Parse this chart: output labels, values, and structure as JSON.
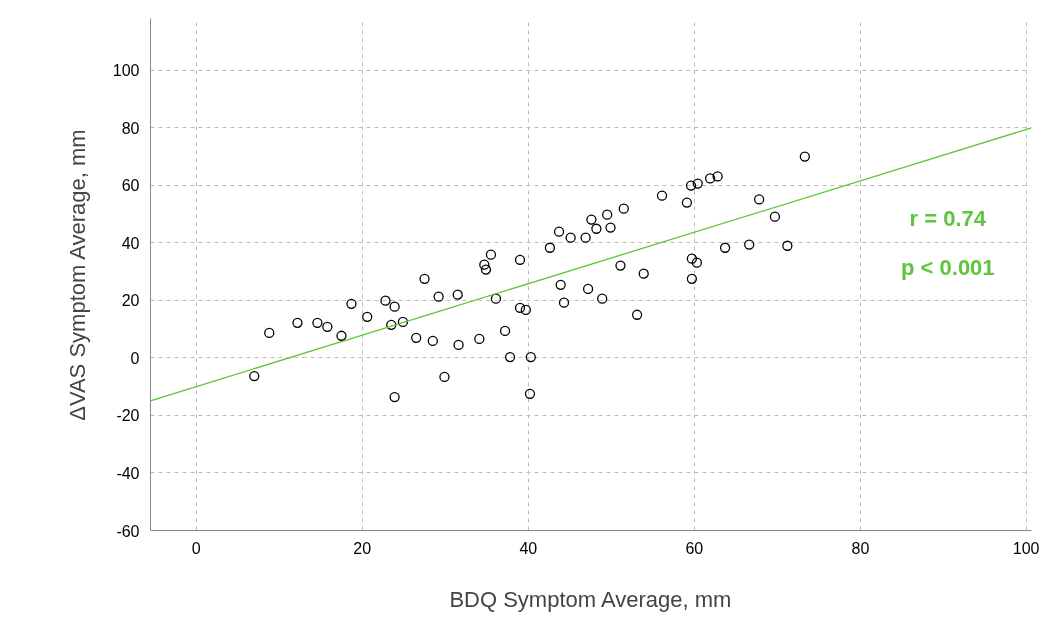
{
  "chart_data": {
    "type": "scatter",
    "xlabel": "BDQ Symptom Average, mm",
    "ylabel": "ΔVAS Symptom Average, mm",
    "xlim": [
      -5.5,
      100.6
    ],
    "ylim": [
      -60,
      118
    ],
    "xticks": [
      0,
      20,
      40,
      60,
      80,
      100
    ],
    "yticks": [
      -60,
      -40,
      -20,
      0,
      20,
      40,
      60,
      80,
      100
    ],
    "grid": true,
    "annotations": [
      "r = 0.74",
      "p < 0.001"
    ],
    "series": [
      {
        "marker": "circle",
        "color": "#000000",
        "x": [
          7.0,
          8.8,
          12.2,
          14.6,
          15.8,
          17.5,
          18.7,
          20.6,
          22.8,
          23.5,
          23.9,
          23.9,
          24.9,
          26.5,
          27.5,
          28.5,
          29.2,
          29.9,
          31.5,
          31.6,
          34.1,
          34.7,
          34.9,
          35.5,
          36.1,
          37.2,
          37.8,
          39.0,
          39.0,
          39.7,
          40.2,
          40.3,
          42.6,
          43.7,
          43.9,
          44.3,
          45.1,
          46.9,
          47.2,
          47.6,
          48.2,
          48.9,
          49.5,
          49.9,
          51.1,
          51.5,
          53.1,
          53.9,
          56.1,
          59.1,
          59.6,
          59.7,
          59.7,
          60.3,
          60.4,
          61.9,
          62.8,
          63.7,
          66.6,
          67.8,
          69.7,
          71.2,
          73.3
        ],
        "values": [
          -6.3,
          8.7,
          12.2,
          12.2,
          10.8,
          7.7,
          18.8,
          14.3,
          19.9,
          11.5,
          17.8,
          -13.6,
          12.5,
          7.0,
          27.5,
          5.9,
          21.3,
          -6.6,
          22.0,
          4.5,
          6.6,
          32.4,
          30.7,
          35.9,
          20.6,
          9.4,
          0.3,
          34.1,
          17.4,
          16.7,
          -12.5,
          0.3,
          38.3,
          43.9,
          25.4,
          19.2,
          41.8,
          41.8,
          24.0,
          48.1,
          44.9,
          20.6,
          49.8,
          45.3,
          32.1,
          51.9,
          15.0,
          29.3,
          56.4,
          54.0,
          59.9,
          34.5,
          27.5,
          33.1,
          60.6,
          62.4,
          63.1,
          38.3,
          39.4,
          55.1,
          49.1,
          39.0,
          70.0
        ]
      },
      {
        "type": "line",
        "color": "#5cc63c",
        "x": [
          -5.5,
          100.6
        ],
        "values": [
          -14.9,
          80.0
        ]
      }
    ]
  }
}
